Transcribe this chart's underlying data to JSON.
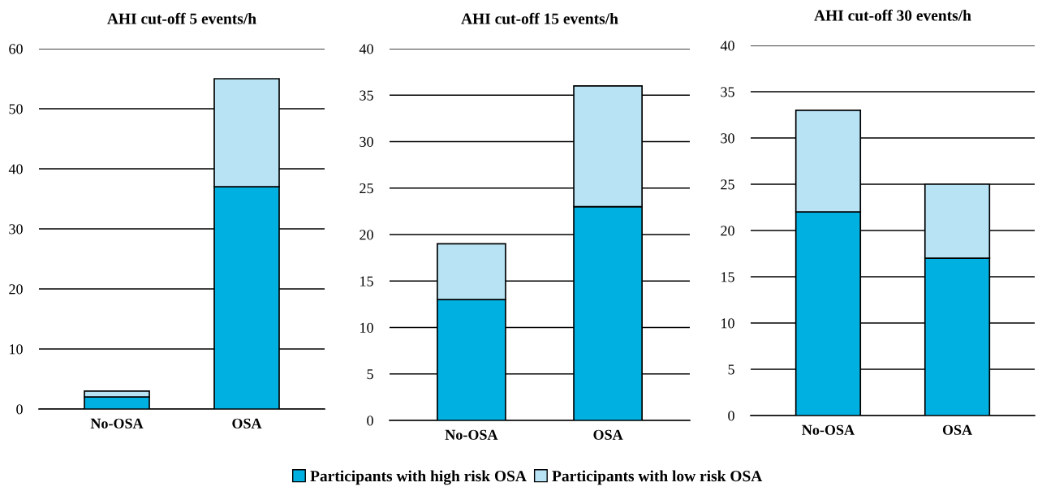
{
  "chart_data": [
    {
      "type": "bar",
      "title": "AHI cut-off 5 events/h",
      "categories": [
        "No-OSA",
        "OSA"
      ],
      "stacked": true,
      "ylim": [
        0,
        60
      ],
      "yticks": [
        0,
        10,
        20,
        30,
        40,
        50,
        60
      ],
      "grid": "y",
      "legend": "bottom",
      "series": [
        {
          "name": "Participants with high risk OSA",
          "color": "#00b0e0",
          "values": [
            2,
            37
          ]
        },
        {
          "name": "Participants with low risk OSA",
          "color": "#b7e3f4",
          "values": [
            1,
            18
          ]
        }
      ]
    },
    {
      "type": "bar",
      "title": "AHI cut-off 15 events/h",
      "categories": [
        "No-OSA",
        "OSA"
      ],
      "stacked": true,
      "ylim": [
        0,
        40
      ],
      "yticks": [
        0,
        5,
        10,
        15,
        20,
        25,
        30,
        35,
        40
      ],
      "grid": "y",
      "series": [
        {
          "color": "#00b0e0",
          "values": [
            13,
            23
          ]
        },
        {
          "color": "#b7e3f4",
          "values": [
            6,
            13
          ]
        }
      ]
    },
    {
      "type": "bar",
      "title": "AHI cut-off 30 events/h",
      "categories": [
        "No-OSA",
        "OSA"
      ],
      "stacked": true,
      "ylim": [
        0,
        40
      ],
      "yticks": [
        0,
        5,
        10,
        15,
        20,
        25,
        30,
        35,
        40
      ],
      "grid": "y",
      "series": [
        {
          "color": "#00b0e0",
          "values": [
            22,
            17
          ]
        },
        {
          "color": "#b7e3f4",
          "values": [
            11,
            8
          ]
        }
      ]
    }
  ]
}
